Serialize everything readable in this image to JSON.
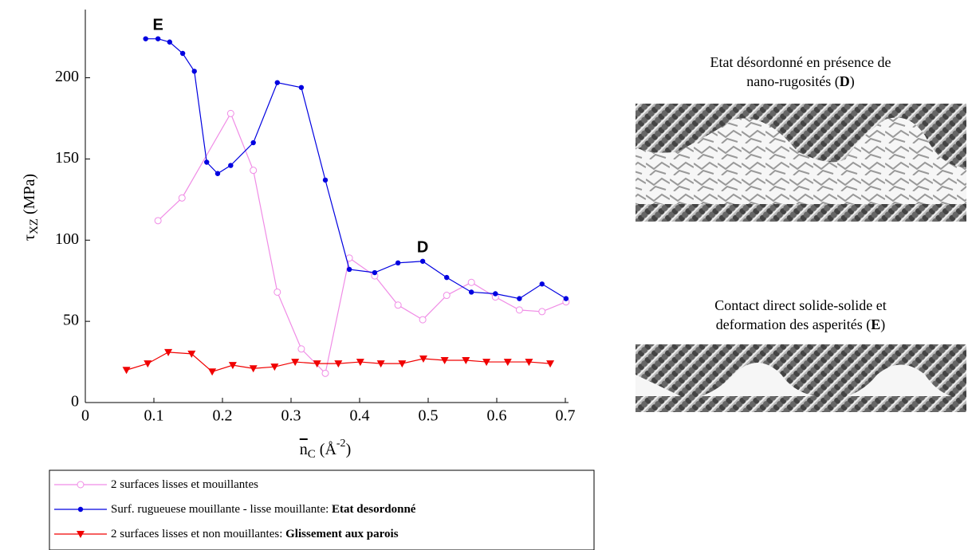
{
  "chart_data": {
    "type": "line",
    "y_label": {
      "base": "τ",
      "sub": "XZ",
      "rest": " (MPa)"
    },
    "x_label": {
      "base": "n",
      "sub": "C",
      "rest": " (Å",
      "sup": "-2",
      "end": ")"
    },
    "xlim": [
      0,
      0.7
    ],
    "xticks": [
      0,
      0.1,
      0.2,
      0.3,
      0.4,
      0.5,
      0.6,
      0.7
    ],
    "ylim": [
      0,
      242
    ],
    "yticks": [
      0,
      50,
      100,
      150,
      200
    ],
    "series": [
      {
        "name": "2 surfaces lisses et mouillantes",
        "color": "#f08ce6",
        "marker": "open-circle",
        "x": [
          0.106,
          0.141,
          0.212,
          0.245,
          0.28,
          0.315,
          0.35,
          0.385,
          0.422,
          0.456,
          0.492,
          0.527,
          0.563,
          0.598,
          0.633,
          0.666,
          0.701
        ],
        "values": [
          112,
          126,
          178,
          143,
          68,
          33,
          18,
          89,
          78,
          60,
          51,
          66,
          74,
          65,
          57,
          56,
          62
        ]
      },
      {
        "name": "Surf. rugueuese mouillante - lisse mouillante: ",
        "name_bold": "Etat desordonné",
        "color": "#0000e0",
        "marker": "dot",
        "x": [
          0.088,
          0.106,
          0.123,
          0.142,
          0.159,
          0.177,
          0.193,
          0.212,
          0.245,
          0.28,
          0.315,
          0.35,
          0.385,
          0.422,
          0.456,
          0.492,
          0.527,
          0.563,
          0.598,
          0.633,
          0.666,
          0.701
        ],
        "values": [
          224,
          224,
          222,
          215,
          204,
          148,
          141,
          146,
          160,
          197,
          194,
          137,
          82,
          80,
          86,
          87,
          77,
          68,
          67,
          64,
          73,
          64
        ]
      },
      {
        "name": "2 surfaces lisses et non mouillantes: ",
        "name_bold": "Glissement aux parois",
        "color": "#f00000",
        "marker": "triangle-down",
        "x": [
          0.06,
          0.091,
          0.121,
          0.155,
          0.185,
          0.215,
          0.245,
          0.276,
          0.306,
          0.338,
          0.369,
          0.401,
          0.431,
          0.462,
          0.493,
          0.524,
          0.555,
          0.585,
          0.616,
          0.647,
          0.678
        ],
        "values": [
          20,
          24,
          31,
          30,
          19,
          23,
          21,
          22,
          25,
          24,
          24,
          25,
          24,
          24,
          27,
          26,
          26,
          25,
          25,
          25,
          24
        ]
      }
    ],
    "annotations": [
      {
        "text": "E",
        "x": 0.106,
        "y": 232
      },
      {
        "text": "D",
        "x": 0.492,
        "y": 95
      }
    ]
  },
  "panels": [
    {
      "caption_line1": "Etat désordonné en présence de",
      "caption_line2": "nano-rugosités (",
      "caption_bold": "D",
      "caption_end": ")"
    },
    {
      "caption_line1": "Contact direct solide-solide et",
      "caption_line2": "deformation des asperités (",
      "caption_bold": "E",
      "caption_end": ")"
    }
  ]
}
